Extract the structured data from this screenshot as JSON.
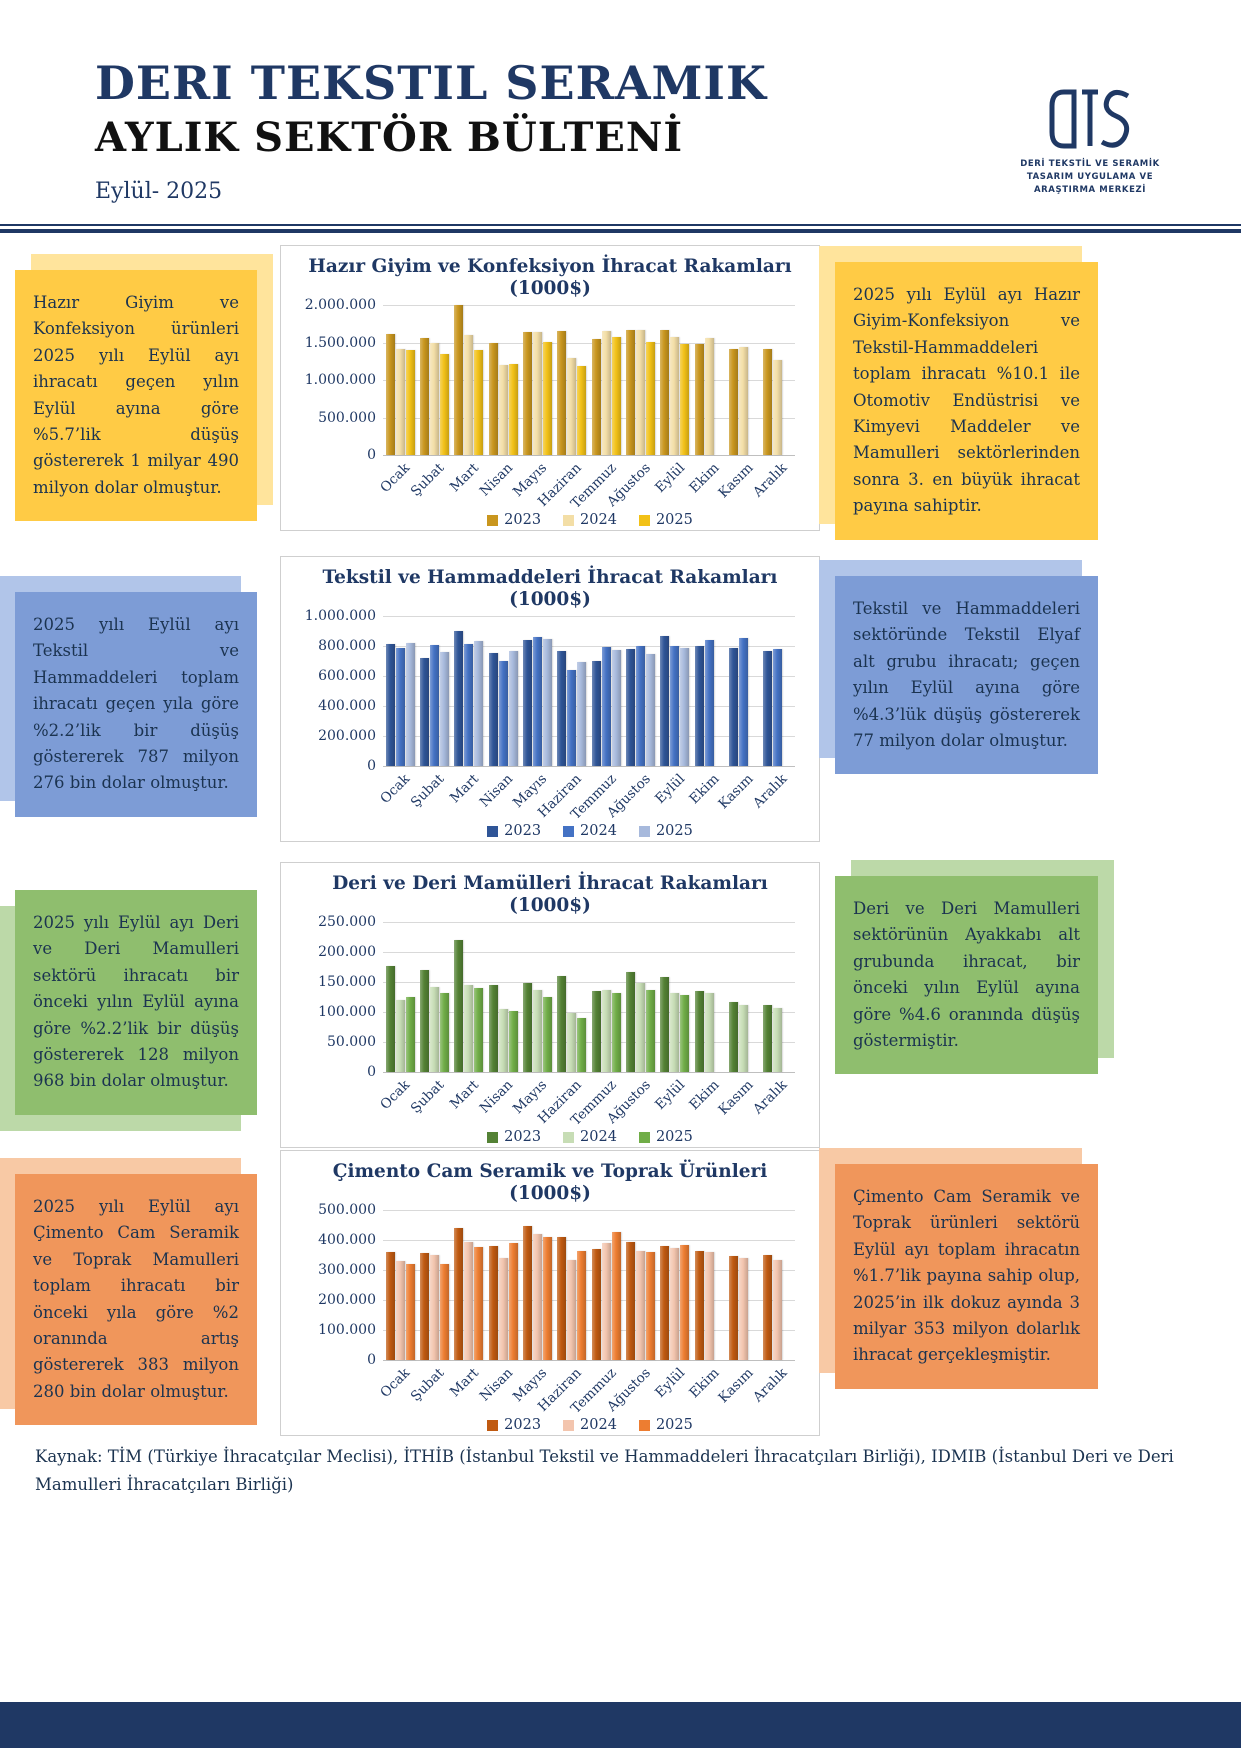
{
  "header": {
    "title": "DERI TEKSTIL SERAMIK",
    "subtitle": "AYLIK SEKTÖR BÜLTENİ",
    "date": "Eylül- 2025"
  },
  "logo": {
    "monogram": "DTS",
    "line1": "DERİ TEKSTİL VE SERAMİK",
    "line2": "TASARIM UYGULAMA VE",
    "line3": "ARAŞTIRMA MERKEZİ"
  },
  "sections": [
    {
      "name": "hazir-giyim",
      "left_text": "Hazır Giyim ve Konfeksiyon ürünleri 2025 yılı Eylül ayı ihracatı geçen yılın Eylül ayına göre %5.7’lik düşüş göstererek 1 milyar 490 milyon dolar olmuştur.",
      "right_text": "2025 yılı Eylül ayı Hazır Giyim-Konfeksiyon ve Tekstil-Hammaddeleri toplam ihracatı %10.1 ile Otomotiv Endüstrisi ve Kimyevi Maddeler ve Mamulleri sektörlerinden sonra 3. en büyük ihracat payına sahiptir."
    },
    {
      "name": "tekstil",
      "left_text": "2025 yılı Eylül ayı Tekstil ve Hammaddeleri toplam ihracatı geçen yıla göre %2.2’lik bir düşüş göstererek 787 milyon 276 bin dolar olmuştur.",
      "right_text": "Tekstil ve Hammaddeleri sektöründe Tekstil Elyaf alt grubu ihracatı; geçen yılın Eylül ayına göre %4.3’lük düşüş göstererek 77 milyon dolar olmuştur."
    },
    {
      "name": "deri",
      "left_text": "2025 yılı Eylül ayı Deri ve Deri Mamulleri sektörü ihracatı bir önceki yılın Eylül ayına göre %2.2’lik bir düşüş göstererek 128 milyon 968 bin dolar olmuştur.",
      "right_text": "Deri ve Deri Mamulleri sektörünün Ayakkabı alt grubunda ihracat, bir önceki yılın Eylül ayına göre %4.6 oranında düşüş göstermiştir."
    },
    {
      "name": "cimento",
      "left_text": "2025 yılı Eylül ayı Çimento Cam Seramik ve Toprak Mamulleri toplam ihracatı bir önceki yıla göre %2 oranında artış göstererek 383 milyon 280 bin dolar olmuştur.",
      "right_text": "Çimento Cam Seramik ve Toprak ürünleri sektörü Eylül ayı toplam ihracatın %1.7’lik payına sahip olup, 2025’in ilk dokuz ayında 3 milyar 353 milyon dolarlık ihracat gerçekleşmiştir."
    }
  ],
  "chart_data": [
    {
      "type": "bar",
      "title": "Hazır Giyim ve Konfeksiyon İhracat Rakamları",
      "subtitle": "(1000$)",
      "categories": [
        "Ocak",
        "Şubat",
        "Mart",
        "Nisan",
        "Mayıs",
        "Haziran",
        "Temmuz",
        "Ağustos",
        "Eylül",
        "Ekim",
        "Kasım",
        "Aralık"
      ],
      "series": [
        {
          "name": "2023",
          "color": "#C9961E",
          "values": [
            1620000,
            1570000,
            2000000,
            1500000,
            1650000,
            1660000,
            1550000,
            1670000,
            1670000,
            1490000,
            1420000,
            1420000
          ]
        },
        {
          "name": "2024",
          "color": "#F3DEA6",
          "values": [
            1420000,
            1500000,
            1610000,
            1210000,
            1640000,
            1300000,
            1660000,
            1670000,
            1580000,
            1560000,
            1450000,
            1270000
          ]
        },
        {
          "name": "2025",
          "color": "#F2C117",
          "values": [
            1400000,
            1350000,
            1410000,
            1220000,
            1510000,
            1190000,
            1580000,
            1510000,
            1490000,
            null,
            null,
            null
          ]
        }
      ],
      "ylim": [
        0,
        2000000
      ],
      "ystep": 500000,
      "grid": true,
      "legend_position": "bottom"
    },
    {
      "type": "bar",
      "title": "Tekstil ve Hammaddeleri İhracat Rakamları",
      "subtitle": "(1000$)",
      "categories": [
        "Ocak",
        "Şubat",
        "Mart",
        "Nisan",
        "Mayıs",
        "Haziran",
        "Temmuz",
        "Ağustos",
        "Eylül",
        "Ekim",
        "Kasım",
        "Aralık"
      ],
      "series": [
        {
          "name": "2023",
          "color": "#2F5597",
          "values": [
            815000,
            720000,
            905000,
            755000,
            845000,
            770000,
            700000,
            785000,
            870000,
            805000,
            790000,
            770000
          ]
        },
        {
          "name": "2024",
          "color": "#4472C4",
          "values": [
            790000,
            810000,
            815000,
            700000,
            860000,
            645000,
            795000,
            800000,
            805000,
            845000,
            855000,
            780000
          ]
        },
        {
          "name": "2025",
          "color": "#A7B9DC",
          "values": [
            825000,
            760000,
            835000,
            770000,
            850000,
            695000,
            775000,
            750000,
            787276,
            null,
            null,
            null
          ]
        }
      ],
      "ylim": [
        0,
        1000000
      ],
      "ystep": 200000,
      "grid": true,
      "legend_position": "bottom"
    },
    {
      "type": "bar",
      "title": "Deri ve Deri Mamülleri İhracat Rakamları",
      "subtitle": "(1000$)",
      "categories": [
        "Ocak",
        "Şubat",
        "Mart",
        "Nisan",
        "Mayıs",
        "Haziran",
        "Temmuz",
        "Ağustos",
        "Eylül",
        "Ekim",
        "Kasım",
        "Aralık"
      ],
      "series": [
        {
          "name": "2023",
          "color": "#548235",
          "values": [
            178000,
            170000,
            220000,
            146000,
            149000,
            160000,
            135000,
            168000,
            159000,
            135000,
            118000,
            112000
          ]
        },
        {
          "name": "2024",
          "color": "#C7DDB5",
          "values": [
            120000,
            143000,
            146000,
            106000,
            137000,
            99000,
            138000,
            149000,
            132000,
            132000,
            113000,
            108000
          ]
        },
        {
          "name": "2025",
          "color": "#70AD47",
          "values": [
            126000,
            132000,
            141000,
            103000,
            125000,
            90000,
            133000,
            137000,
            128968,
            null,
            null,
            null
          ]
        }
      ],
      "ylim": [
        0,
        250000
      ],
      "ystep": 50000,
      "grid": true,
      "legend_position": "bottom"
    },
    {
      "type": "bar",
      "title": "Çimento Cam Seramik ve Toprak Ürünleri",
      "subtitle": "(1000$)",
      "categories": [
        "Ocak",
        "Şubat",
        "Mart",
        "Nisan",
        "Mayıs",
        "Haziran",
        "Temmuz",
        "Ağustos",
        "Eylül",
        "Ekim",
        "Kasım",
        "Aralık"
      ],
      "series": [
        {
          "name": "2023",
          "color": "#C05A11",
          "values": [
            360000,
            358000,
            440000,
            380000,
            448000,
            410000,
            372000,
            395000,
            383000,
            365000,
            348000,
            350000
          ]
        },
        {
          "name": "2024",
          "color": "#F3C5AE",
          "values": [
            330000,
            352000,
            395000,
            340000,
            422000,
            335000,
            390000,
            365000,
            376000,
            362000,
            343000,
            335000
          ]
        },
        {
          "name": "2025",
          "color": "#ED7D31",
          "values": [
            320000,
            322000,
            378000,
            390000,
            412000,
            365000,
            428000,
            362000,
            383280,
            null,
            null,
            null
          ]
        }
      ],
      "ylim": [
        0,
        500000
      ],
      "ystep": 100000,
      "grid": true,
      "legend_position": "bottom"
    }
  ],
  "footer": {
    "source": "Kaynak: TİM (Türkiye İhracatçılar Meclisi), İTHİB (İstanbul Tekstil ve Hammaddeleri İhracatçıları Birliği), IDMIB (İstanbul Deri ve Deri Mamulleri İhracatçıları Birliği)"
  },
  "colors": {
    "navy": "#1F3864",
    "yellow_box": "#FFCB45",
    "yellow_back": "#FFE49C",
    "blue_box": "#7D9CD6",
    "blue_back": "#B1C5E9",
    "green_box": "#8FBE6E",
    "green_back": "#BCD9A8",
    "orange_box": "#F0965B",
    "orange_back": "#F8C9A5"
  }
}
